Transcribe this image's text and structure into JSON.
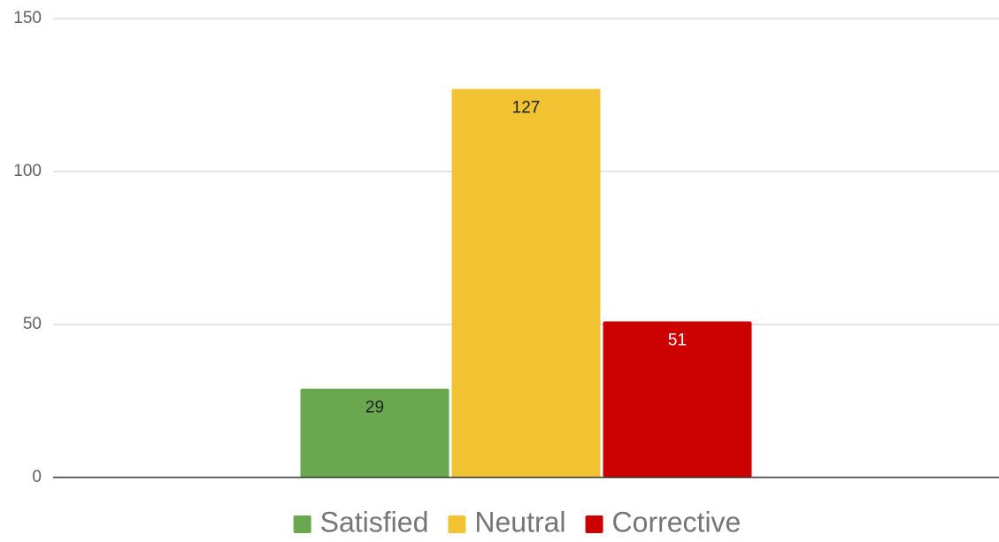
{
  "chart_data": {
    "type": "bar",
    "categories": [
      null
    ],
    "series": [
      {
        "name": "Satisfied",
        "color": "#6aa84f",
        "values": [
          29
        ]
      },
      {
        "name": "Neutral",
        "color": "#f1c232",
        "values": [
          127
        ]
      },
      {
        "name": "Corrective",
        "color": "#cc0000",
        "values": [
          51
        ]
      }
    ],
    "ylim": [
      0,
      150
    ],
    "yticks": [
      0,
      50,
      100,
      150
    ],
    "grid": true,
    "legend": "bottom",
    "data_labels": true
  }
}
